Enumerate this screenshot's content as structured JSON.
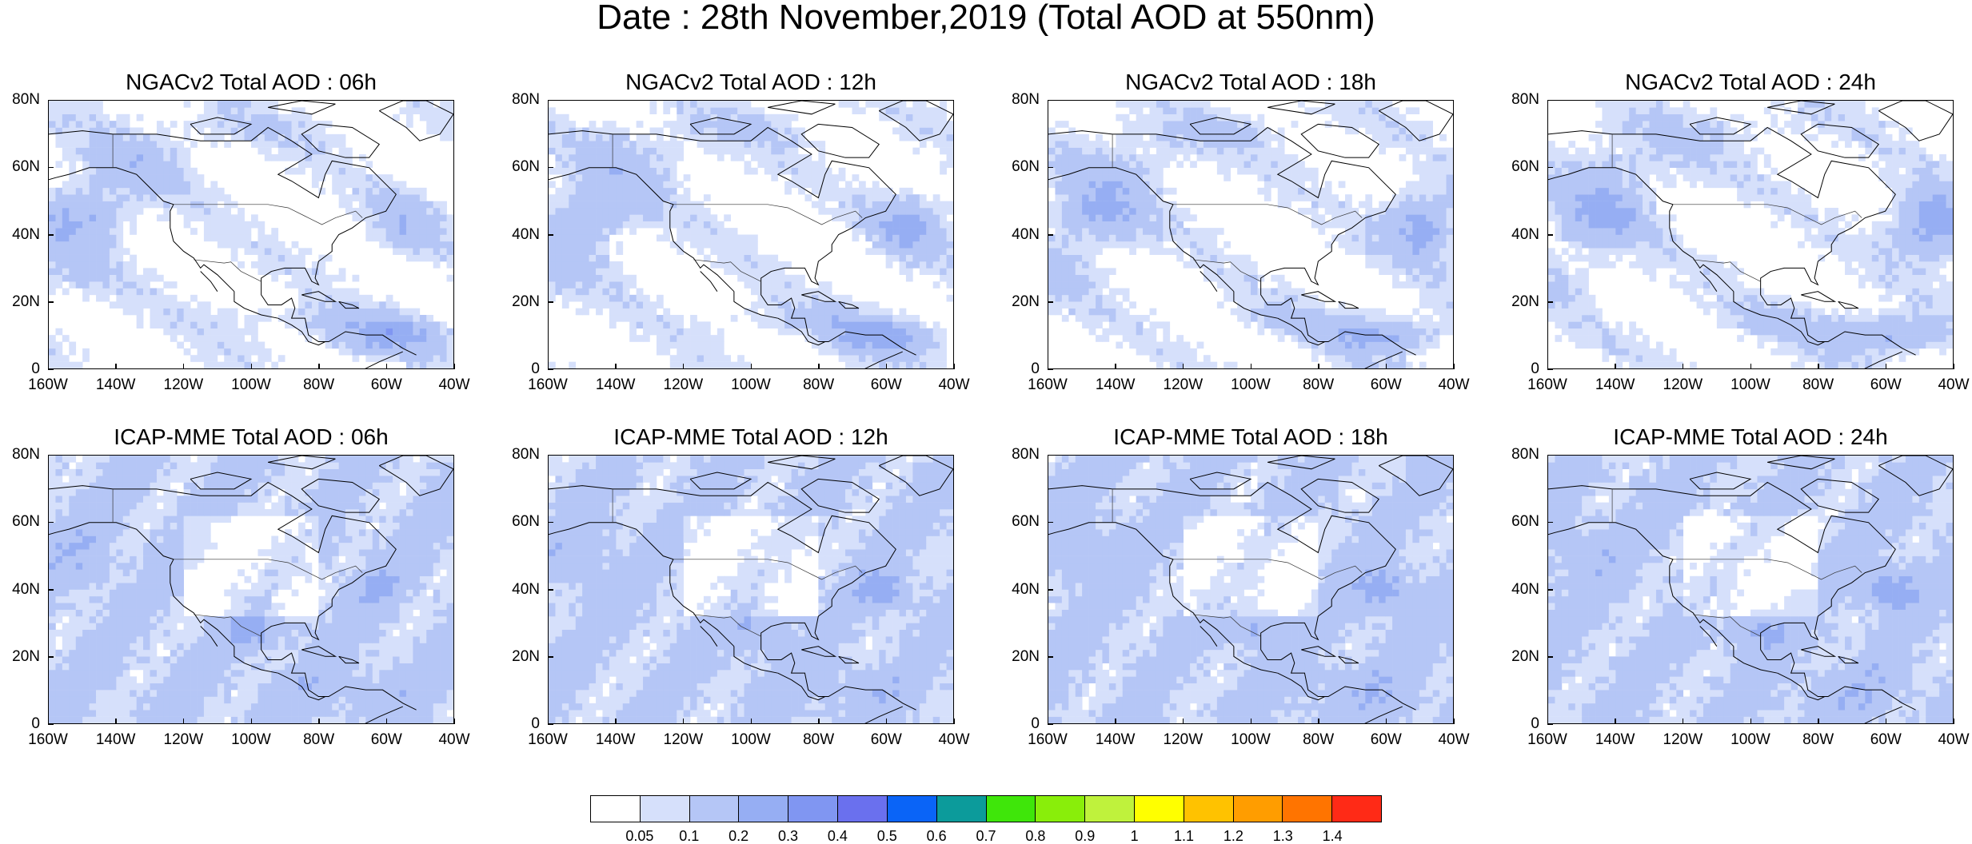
{
  "title": "Date : 28th November,2019 (Total AOD at 550nm)",
  "panels": [
    {
      "id": "ngac-06",
      "title": "NGACv2 Total AOD : 06h",
      "model": "NGACv2",
      "hour": "06h"
    },
    {
      "id": "ngac-12",
      "title": "NGACv2 Total AOD : 12h",
      "model": "NGACv2",
      "hour": "12h"
    },
    {
      "id": "ngac-18",
      "title": "NGACv2 Total AOD : 18h",
      "model": "NGACv2",
      "hour": "18h"
    },
    {
      "id": "ngac-24",
      "title": "NGACv2 Total AOD : 24h",
      "model": "NGACv2",
      "hour": "24h"
    },
    {
      "id": "icap-06",
      "title": "ICAP-MME Total AOD : 06h",
      "model": "ICAP-MME",
      "hour": "06h"
    },
    {
      "id": "icap-12",
      "title": "ICAP-MME Total AOD : 12h",
      "model": "ICAP-MME",
      "hour": "12h"
    },
    {
      "id": "icap-18",
      "title": "ICAP-MME Total AOD : 18h",
      "model": "ICAP-MME",
      "hour": "18h"
    },
    {
      "id": "icap-24",
      "title": "ICAP-MME Total AOD : 24h",
      "model": "ICAP-MME",
      "hour": "24h"
    }
  ],
  "axes": {
    "lat_labels": [
      "80N",
      "60N",
      "40N",
      "20N",
      "0"
    ],
    "lat_values": [
      80,
      60,
      40,
      20,
      0
    ],
    "lon_labels": [
      "160W",
      "140W",
      "120W",
      "100W",
      "80W",
      "60W",
      "40W"
    ],
    "lon_values": [
      -160,
      -140,
      -120,
      -100,
      -80,
      -60,
      -40
    ],
    "lat_range": [
      0,
      80
    ],
    "lon_range": [
      -160,
      -40
    ]
  },
  "colorbar": {
    "levels": [
      "0.05",
      "0.1",
      "0.2",
      "0.3",
      "0.4",
      "0.5",
      "0.6",
      "0.7",
      "0.8",
      "0.9",
      "1",
      "1.1",
      "1.2",
      "1.3",
      "1.4"
    ],
    "colors": [
      "#ffffff",
      "#d6e0fb",
      "#b5c6f6",
      "#96aef3",
      "#8096f2",
      "#6a70ee",
      "#0a64f7",
      "#0c9b9b",
      "#3fe60a",
      "#89ee0a",
      "#bff23c",
      "#ffff00",
      "#ffc200",
      "#ff9d00",
      "#ff7400",
      "#ff2a16"
    ]
  }
}
